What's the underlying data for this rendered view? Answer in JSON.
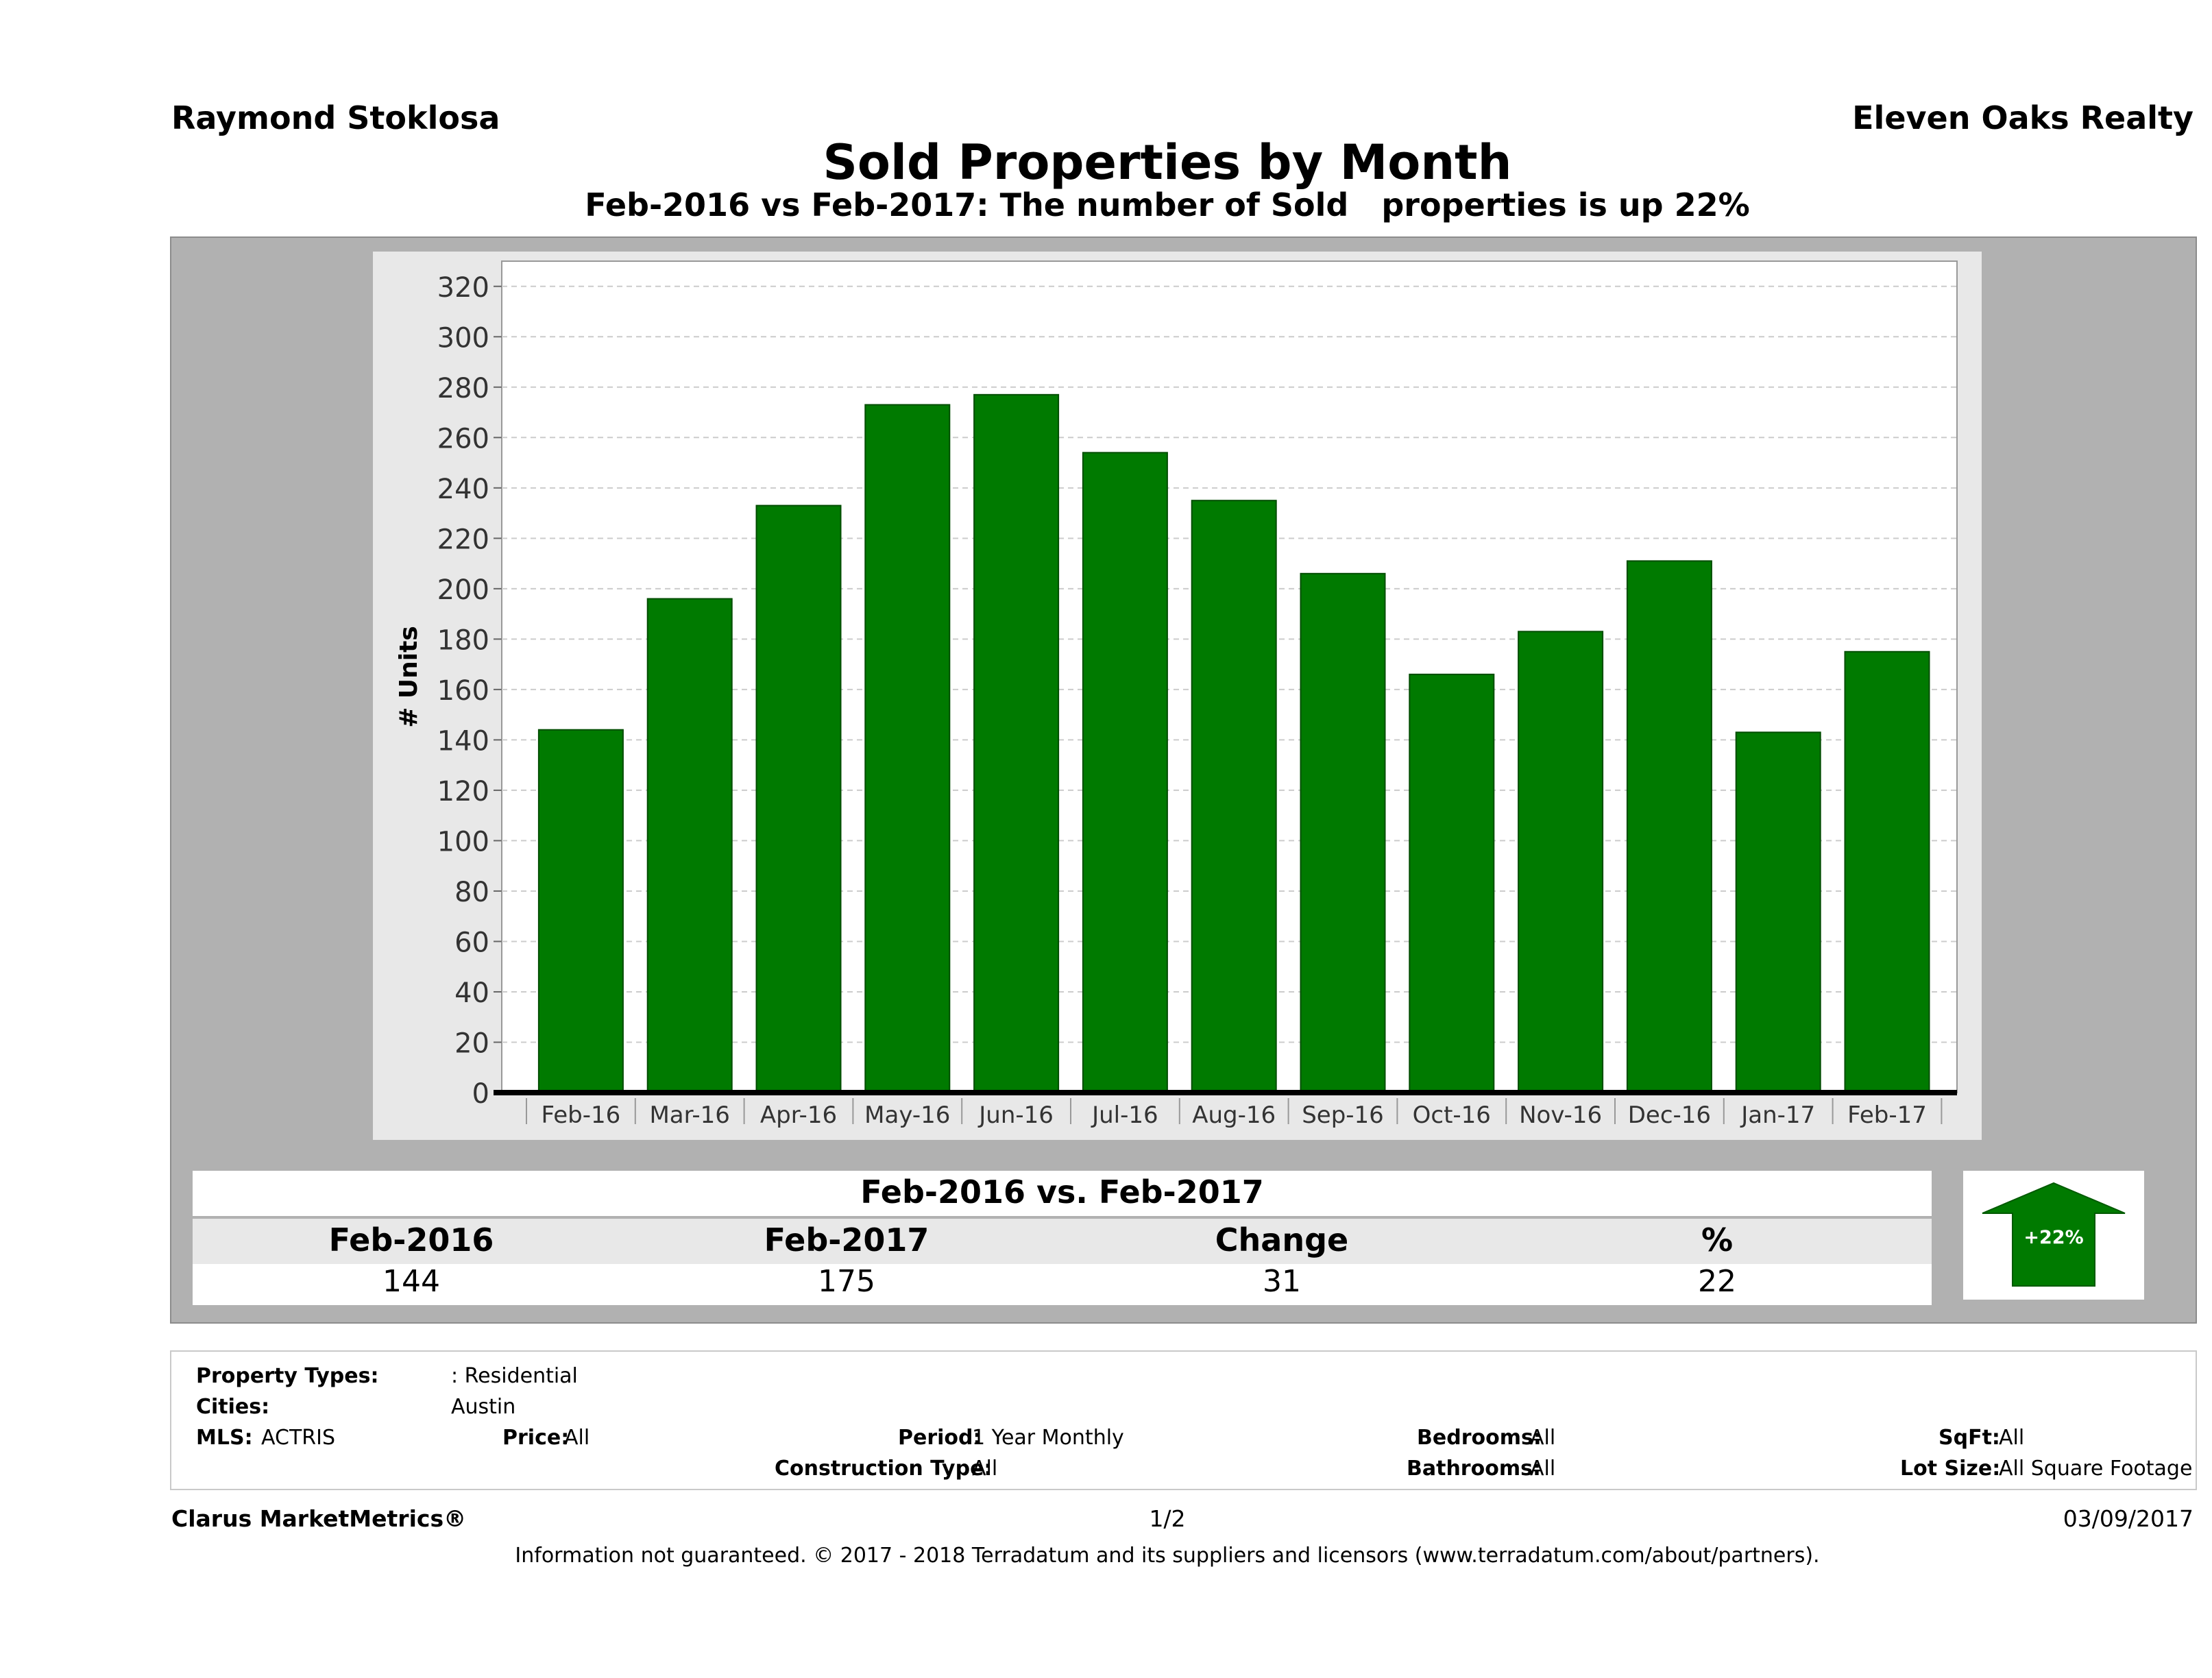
{
  "header": {
    "agent": "Raymond Stoklosa",
    "company": "Eleven Oaks Realty",
    "title": "Sold Properties by Month",
    "subtitle": "Feb-2016 vs Feb-2017: The number of Sold   properties is up 22%"
  },
  "chart_data": {
    "type": "bar",
    "categories": [
      "Feb-16",
      "Mar-16",
      "Apr-16",
      "May-16",
      "Jun-16",
      "Jul-16",
      "Aug-16",
      "Sep-16",
      "Oct-16",
      "Nov-16",
      "Dec-16",
      "Jan-17",
      "Feb-17"
    ],
    "values": [
      144,
      196,
      233,
      273,
      277,
      254,
      235,
      206,
      166,
      183,
      211,
      143,
      175
    ],
    "ylabel": "# Units",
    "xlabel": "",
    "ylim": [
      0,
      330
    ],
    "yticks": [
      0,
      20,
      40,
      60,
      80,
      100,
      120,
      140,
      160,
      180,
      200,
      220,
      240,
      260,
      280,
      300,
      320
    ],
    "bar_color": "#007a00",
    "grid": true
  },
  "summary": {
    "title": "Feb-2016 vs. Feb-2017",
    "headers": [
      "Feb-2016",
      "Feb-2017",
      "Change",
      "%"
    ],
    "values": [
      "144",
      "175",
      "31",
      "22"
    ],
    "badge": "+22%",
    "badge_icon": "up-arrow-icon",
    "badge_color": "#007a00"
  },
  "criteria": {
    "property_types_label": "Property Types:",
    "property_types_value": ": Residential",
    "cities_label": "Cities:",
    "cities_value": "Austin",
    "mls_label": "MLS:",
    "mls_value": "ACTRIS",
    "price_label": "Price:",
    "price_value": "All",
    "period_label": "Period:",
    "period_value": "1 Year Monthly",
    "construction_label": "Construction Type:",
    "construction_value": "All",
    "bedrooms_label": "Bedrooms:",
    "bedrooms_value": "All",
    "bathrooms_label": "Bathrooms:",
    "bathrooms_value": "All",
    "sqft_label": "SqFt:",
    "sqft_value": "All",
    "lot_label": "Lot Size:",
    "lot_value": "All Square Footage"
  },
  "footer": {
    "brand": "Clarus MarketMetrics®",
    "page": "1/2",
    "date": "03/09/2017",
    "disclaimer": "Information not guaranteed. © 2017 - 2018 Terradatum and its suppliers and licensors (www.terradatum.com/about/partners)."
  }
}
